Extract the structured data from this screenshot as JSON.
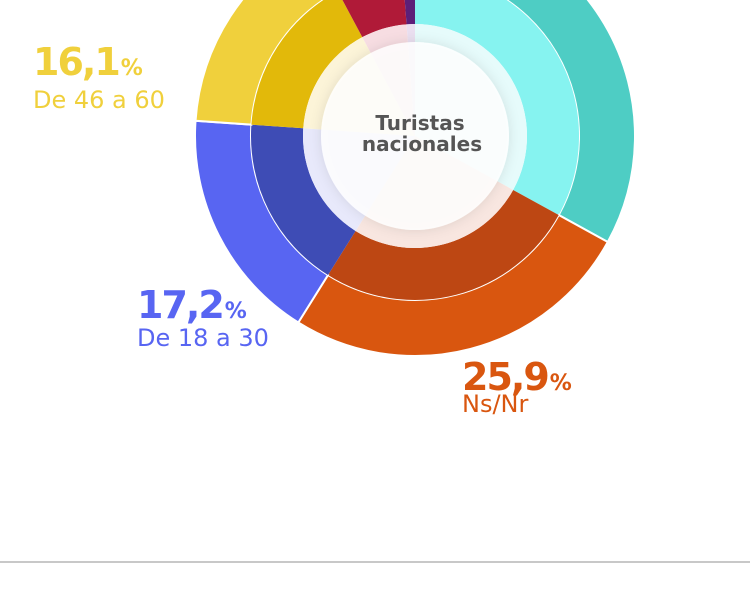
{
  "chart_data": {
    "type": "donut",
    "center_label": [
      "Turistas",
      "nacionales"
    ],
    "categories": [
      null,
      "Ns/Nr",
      "De 18 a 30",
      "De 46 a 60",
      null,
      null
    ],
    "values": [
      33.0,
      25.9,
      17.2,
      16.1,
      6.6,
      1.2
    ],
    "value_labels": [
      null,
      "25,9%",
      "17,2%",
      "16,1%",
      null,
      null
    ],
    "colors": [
      "#4ecdc4",
      "#d9560f",
      "#5865f2",
      "#f0d03c",
      "#d42043",
      "#7b2d9a"
    ],
    "middle_colors": [
      "#86f3f0",
      "#bd4713",
      "#3e4cb5",
      "#e2b90a",
      "#b01a38",
      "#5c1f78"
    ],
    "inner_colors": [
      "#e6fbfb",
      "#f8e6e0",
      "#e8e9fb",
      "#fcf4d8",
      "#f7dde2",
      "#eadff0"
    ]
  }
}
